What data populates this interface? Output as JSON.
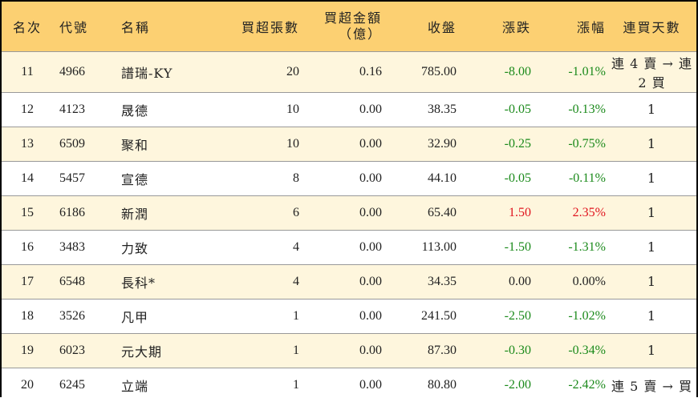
{
  "headers": {
    "rank": "名次",
    "code": "代號",
    "name": "名稱",
    "net_buy_lots": "買超張數",
    "net_buy_amount_line1": "買超金額",
    "net_buy_amount_line2": "（億）",
    "close": "收盤",
    "change": "漲跌",
    "change_pct": "漲幅",
    "streak": "連買天數"
  },
  "colors": {
    "header_bg": "#fcd072",
    "alt_row_bg": "#fef6dd",
    "down": "#1b8a1b",
    "up": "#e0141e"
  },
  "rows": [
    {
      "rank": "11",
      "code": "4966",
      "name": "譜瑞-KY",
      "lots": "20",
      "amount": "0.16",
      "close": "785.00",
      "change": "-8.00",
      "pct": "-1.01%",
      "streak": "連 4 賣 → 連 2 買",
      "dir": "down"
    },
    {
      "rank": "12",
      "code": "4123",
      "name": "晟德",
      "lots": "10",
      "amount": "0.00",
      "close": "38.35",
      "change": "-0.05",
      "pct": "-0.13%",
      "streak": "1",
      "dir": "down"
    },
    {
      "rank": "13",
      "code": "6509",
      "name": "聚和",
      "lots": "10",
      "amount": "0.00",
      "close": "32.90",
      "change": "-0.25",
      "pct": "-0.75%",
      "streak": "1",
      "dir": "down"
    },
    {
      "rank": "14",
      "code": "5457",
      "name": "宣德",
      "lots": "8",
      "amount": "0.00",
      "close": "44.10",
      "change": "-0.05",
      "pct": "-0.11%",
      "streak": "1",
      "dir": "down"
    },
    {
      "rank": "15",
      "code": "6186",
      "name": "新潤",
      "lots": "6",
      "amount": "0.00",
      "close": "65.40",
      "change": "1.50",
      "pct": "2.35%",
      "streak": "1",
      "dir": "up"
    },
    {
      "rank": "16",
      "code": "3483",
      "name": "力致",
      "lots": "4",
      "amount": "0.00",
      "close": "113.00",
      "change": "-1.50",
      "pct": "-1.31%",
      "streak": "1",
      "dir": "down"
    },
    {
      "rank": "17",
      "code": "6548",
      "name": "長科*",
      "lots": "4",
      "amount": "0.00",
      "close": "34.35",
      "change": "0.00",
      "pct": "0.00%",
      "streak": "1",
      "dir": "flat"
    },
    {
      "rank": "18",
      "code": "3526",
      "name": "凡甲",
      "lots": "1",
      "amount": "0.00",
      "close": "241.50",
      "change": "-2.50",
      "pct": "-1.02%",
      "streak": "1",
      "dir": "down"
    },
    {
      "rank": "19",
      "code": "6023",
      "name": "元大期",
      "lots": "1",
      "amount": "0.00",
      "close": "87.30",
      "change": "-0.30",
      "pct": "-0.34%",
      "streak": "1",
      "dir": "down"
    },
    {
      "rank": "20",
      "code": "6245",
      "name": "立端",
      "lots": "1",
      "amount": "0.00",
      "close": "80.80",
      "change": "-2.00",
      "pct": "-2.42%",
      "streak": "連 5 賣 → 買",
      "dir": "down"
    }
  ]
}
